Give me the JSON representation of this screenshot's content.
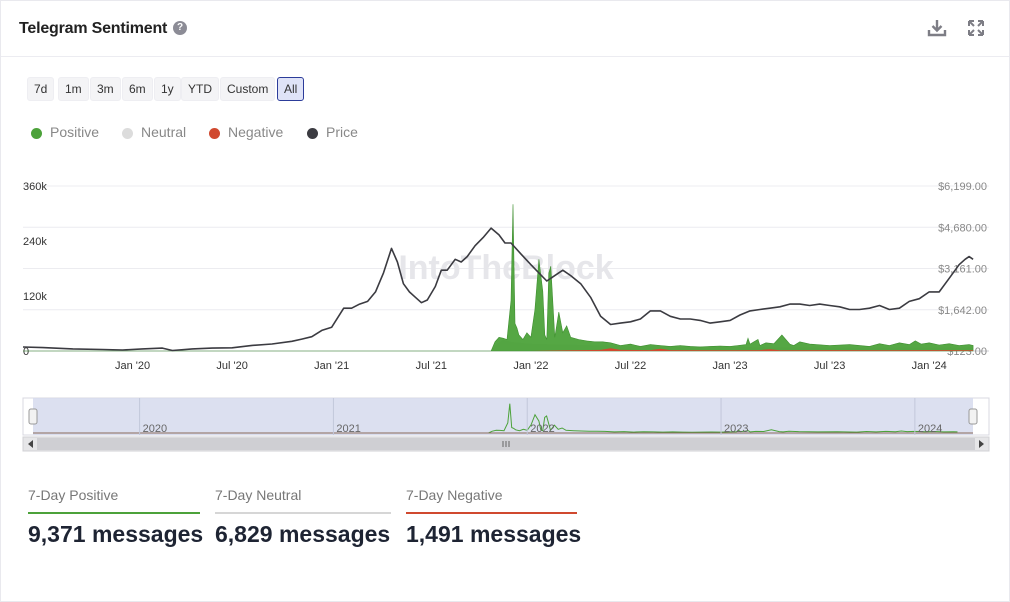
{
  "header": {
    "title": "Telegram Sentiment",
    "help_glyph": "?",
    "icons": [
      "download-icon",
      "fullscreen-icon"
    ]
  },
  "ranges": [
    {
      "label": "7d",
      "active": false
    },
    {
      "label": "1m",
      "active": false
    },
    {
      "label": "3m",
      "active": false
    },
    {
      "label": "6m",
      "active": false
    },
    {
      "label": "1y",
      "active": false
    },
    {
      "label": "YTD",
      "active": false
    },
    {
      "label": "Custom",
      "active": false
    },
    {
      "label": "All",
      "active": true
    }
  ],
  "legend": [
    {
      "name": "Positive",
      "color": "#4ca23a"
    },
    {
      "name": "Neutral",
      "color": "#dcdcdc"
    },
    {
      "name": "Negative",
      "color": "#d0492f"
    },
    {
      "name": "Price",
      "color": "#3b3b41"
    }
  ],
  "watermark": "IntoTheBlock",
  "stats": [
    {
      "label": "7-Day Positive",
      "value": "9,371 messages",
      "color": "#4ca23a"
    },
    {
      "label": "7-Day Neutral",
      "value": "6,829 messages",
      "color": "#d6d6d6"
    },
    {
      "label": "7-Day Negative",
      "value": "1,491 messages",
      "color": "#d0492f"
    }
  ],
  "chart_data": {
    "type": "area",
    "title": "",
    "y_left": {
      "ticks": [
        "0",
        "120k",
        "240k",
        "360k"
      ],
      "min": 0,
      "max": 360000
    },
    "y_right": {
      "ticks": [
        "$123.00",
        "$1,642.00",
        "$3,161.00",
        "$4,680.00",
        "$6,199.00"
      ],
      "min": 123,
      "max": 6199
    },
    "x_ticks": [
      "Jan '20",
      "Jul '20",
      "Jan '21",
      "Jul '21",
      "Jan '22",
      "Jul '22",
      "Jan '23",
      "Jul '23",
      "Jan '24"
    ],
    "x_range": [
      2019.45,
      2024.3
    ],
    "grid": true,
    "legend_position": "top-left",
    "navigator_ticks": [
      "2020",
      "2021",
      "2022",
      "2023",
      "2024"
    ],
    "series": [
      {
        "name": "Price",
        "type": "line",
        "axis": "right",
        "color": "#3b3b41",
        "x": [
          2019.45,
          2019.55,
          2019.7,
          2019.85,
          2019.95,
          2020.05,
          2020.15,
          2020.2,
          2020.3,
          2020.4,
          2020.5,
          2020.6,
          2020.7,
          2020.8,
          2020.85,
          2020.9,
          2020.95,
          2021.0,
          2021.03,
          2021.06,
          2021.1,
          2021.14,
          2021.18,
          2021.22,
          2021.26,
          2021.3,
          2021.33,
          2021.36,
          2021.39,
          2021.42,
          2021.45,
          2021.48,
          2021.52,
          2021.55,
          2021.58,
          2021.62,
          2021.65,
          2021.68,
          2021.72,
          2021.76,
          2021.8,
          2021.84,
          2021.87,
          2021.9,
          2021.95,
          2022.0,
          2022.04,
          2022.08,
          2022.12,
          2022.16,
          2022.2,
          2022.25,
          2022.3,
          2022.35,
          2022.4,
          2022.45,
          2022.5,
          2022.55,
          2022.6,
          2022.65,
          2022.7,
          2022.75,
          2022.8,
          2022.85,
          2022.9,
          2022.95,
          2023.0,
          2023.05,
          2023.1,
          2023.15,
          2023.2,
          2023.25,
          2023.3,
          2023.35,
          2023.4,
          2023.45,
          2023.5,
          2023.55,
          2023.6,
          2023.65,
          2023.7,
          2023.75,
          2023.8,
          2023.85,
          2023.9,
          2023.95,
          2024.0,
          2024.05,
          2024.1,
          2024.15,
          2024.18,
          2024.2,
          2024.22
        ],
        "values": [
          270,
          250,
          200,
          180,
          160,
          200,
          230,
          140,
          200,
          230,
          240,
          330,
          380,
          480,
          560,
          650,
          880,
          1000,
          1350,
          1700,
          1700,
          1850,
          1950,
          2300,
          3000,
          3900,
          3400,
          2600,
          2300,
          2100,
          1900,
          2000,
          2500,
          3100,
          3100,
          3500,
          3400,
          3600,
          4000,
          4300,
          4650,
          4400,
          4100,
          4100,
          3700,
          3300,
          3000,
          2700,
          2900,
          3100,
          2900,
          2600,
          2100,
          1400,
          1100,
          1150,
          1200,
          1300,
          1600,
          1600,
          1400,
          1300,
          1300,
          1250,
          1150,
          1200,
          1250,
          1450,
          1600,
          1650,
          1700,
          1750,
          1850,
          1850,
          1800,
          1850,
          1800,
          1750,
          1650,
          1650,
          1700,
          1800,
          1650,
          1700,
          1950,
          2050,
          2300,
          2300,
          2800,
          3300,
          3500,
          3600,
          3500
        ]
      },
      {
        "name": "Positive",
        "type": "area",
        "axis": "left",
        "color": "#4ca23a",
        "x": [
          2019.45,
          2021.6,
          2021.8,
          2021.82,
          2021.84,
          2021.86,
          2021.88,
          2021.9,
          2021.91,
          2021.92,
          2021.93,
          2021.94,
          2021.96,
          2021.98,
          2022.0,
          2022.02,
          2022.04,
          2022.06,
          2022.07,
          2022.08,
          2022.09,
          2022.1,
          2022.12,
          2022.14,
          2022.16,
          2022.18,
          2022.2,
          2022.24,
          2022.28,
          2022.32,
          2022.36,
          2022.4,
          2022.45,
          2022.5,
          2022.55,
          2022.6,
          2022.65,
          2022.7,
          2022.75,
          2022.8,
          2022.85,
          2022.9,
          2022.95,
          2023.0,
          2023.04,
          2023.08,
          2023.09,
          2023.1,
          2023.12,
          2023.14,
          2023.15,
          2023.18,
          2023.22,
          2023.26,
          2023.3,
          2023.32,
          2023.35,
          2023.4,
          2023.5,
          2023.6,
          2023.7,
          2023.75,
          2023.8,
          2023.85,
          2023.9,
          2023.93,
          2023.96,
          2024.0,
          2024.05,
          2024.1,
          2024.15,
          2024.2,
          2024.22
        ],
        "values": [
          0,
          0,
          0,
          20000,
          30000,
          28000,
          25000,
          110000,
          320000,
          60000,
          50000,
          35000,
          25000,
          40000,
          30000,
          90000,
          200000,
          130000,
          35000,
          25000,
          170000,
          185000,
          30000,
          85000,
          40000,
          55000,
          30000,
          25000,
          22000,
          20000,
          20000,
          18000,
          12000,
          15000,
          10000,
          14000,
          12000,
          10000,
          12000,
          10000,
          9000,
          10000,
          11000,
          10000,
          12000,
          14000,
          28000,
          15000,
          20000,
          25000,
          12000,
          18000,
          16000,
          35000,
          15000,
          12000,
          20000,
          15000,
          12000,
          14000,
          10000,
          16000,
          12000,
          18000,
          14000,
          22000,
          15000,
          18000,
          13000,
          16000,
          12000,
          14000,
          12000
        ]
      },
      {
        "name": "Neutral",
        "type": "area",
        "axis": "left",
        "color": "#dcdcdc",
        "x": [
          2019.45,
          2021.8,
          2021.82,
          2021.86,
          2021.9,
          2021.95,
          2022.0,
          2022.1,
          2022.2,
          2022.4,
          2022.6,
          2022.8,
          2023.0,
          2023.2,
          2023.4,
          2023.6,
          2023.8,
          2024.0,
          2024.22
        ],
        "values": [
          0,
          0,
          12000,
          25000,
          20000,
          18000,
          16000,
          15000,
          14000,
          12000,
          11000,
          10000,
          9000,
          8500,
          8000,
          7500,
          7000,
          7500,
          7000
        ]
      },
      {
        "name": "Negative",
        "type": "area",
        "axis": "left",
        "color": "#d0492f",
        "x": [
          2019.45,
          2021.9,
          2022.0,
          2022.2,
          2022.35,
          2022.4,
          2022.45,
          2022.6,
          2022.65,
          2022.7,
          2023.0,
          2023.15,
          2023.2,
          2023.25,
          2023.5,
          2023.8,
          2024.0,
          2024.22
        ],
        "values": [
          0,
          0,
          0,
          1500,
          2500,
          6000,
          2500,
          2000,
          5000,
          2000,
          1500,
          2000,
          4000,
          1500,
          2000,
          1500,
          2000,
          1500
        ]
      }
    ]
  }
}
